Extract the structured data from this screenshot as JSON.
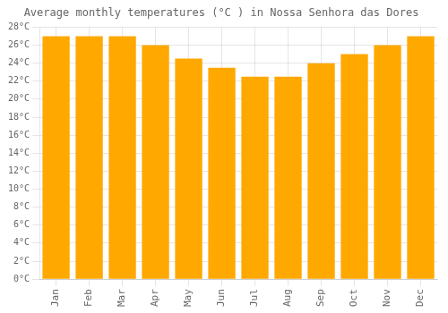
{
  "chart_data": {
    "type": "bar",
    "title": "Average monthly temperatures (°C ) in Nossa Senhora das Dores",
    "categories": [
      "Jan",
      "Feb",
      "Mar",
      "Apr",
      "May",
      "Jun",
      "Jul",
      "Aug",
      "Sep",
      "Oct",
      "Nov",
      "Dec"
    ],
    "values": [
      27.0,
      27.0,
      27.0,
      26.0,
      24.5,
      23.5,
      22.5,
      22.5,
      24.0,
      25.0,
      26.0,
      27.0
    ],
    "color": "#FFA800",
    "ylim": [
      0,
      28
    ],
    "yticks": [
      {
        "value": 0,
        "label": "0°C"
      },
      {
        "value": 2,
        "label": "2°C"
      },
      {
        "value": 4,
        "label": "4°C"
      },
      {
        "value": 6,
        "label": "6°C"
      },
      {
        "value": 8,
        "label": "8°C"
      },
      {
        "value": 10,
        "label": "10°C"
      },
      {
        "value": 12,
        "label": "12°C"
      },
      {
        "value": 14,
        "label": "14°C"
      },
      {
        "value": 16,
        "label": "16°C"
      },
      {
        "value": 18,
        "label": "18°C"
      },
      {
        "value": 20,
        "label": "20°C"
      },
      {
        "value": 22,
        "label": "22°C"
      },
      {
        "value": 24,
        "label": "24°C"
      },
      {
        "value": 26,
        "label": "26°C"
      },
      {
        "value": 28,
        "label": "28°C"
      }
    ],
    "grid": true
  }
}
